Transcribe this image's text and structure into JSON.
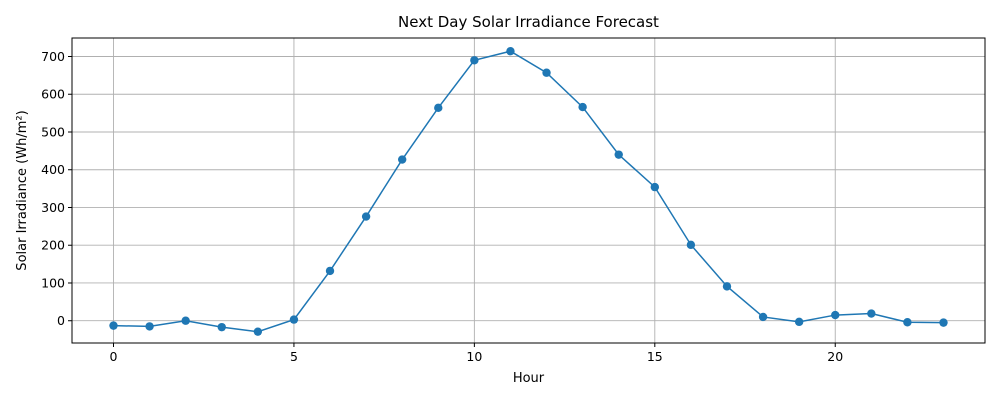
{
  "chart_data": {
    "type": "line",
    "title": "Next Day Solar Irradiance Forecast",
    "xlabel": "Hour",
    "ylabel": "Solar Irradiance (Wh/m²)",
    "xlim": [
      -1.15,
      24.15
    ],
    "ylim": [
      -59,
      749
    ],
    "xticks": [
      0,
      5,
      10,
      15,
      20
    ],
    "yticks": [
      0,
      100,
      200,
      300,
      400,
      500,
      600,
      700
    ],
    "grid": true,
    "legend": "none",
    "series": [
      {
        "color": "#1f77b4",
        "marker": "circle",
        "x": [
          0,
          1,
          2,
          3,
          4,
          5,
          6,
          7,
          8,
          9,
          10,
          11,
          12,
          13,
          14,
          15,
          16,
          17,
          18,
          19,
          20,
          21,
          22,
          23
        ],
        "y": [
          -13,
          -15,
          0,
          -17,
          -29,
          3,
          132,
          276,
          427,
          564,
          690,
          714,
          657,
          566,
          440,
          354,
          201,
          91,
          10,
          -3,
          15,
          19,
          -4,
          -5
        ]
      }
    ]
  }
}
